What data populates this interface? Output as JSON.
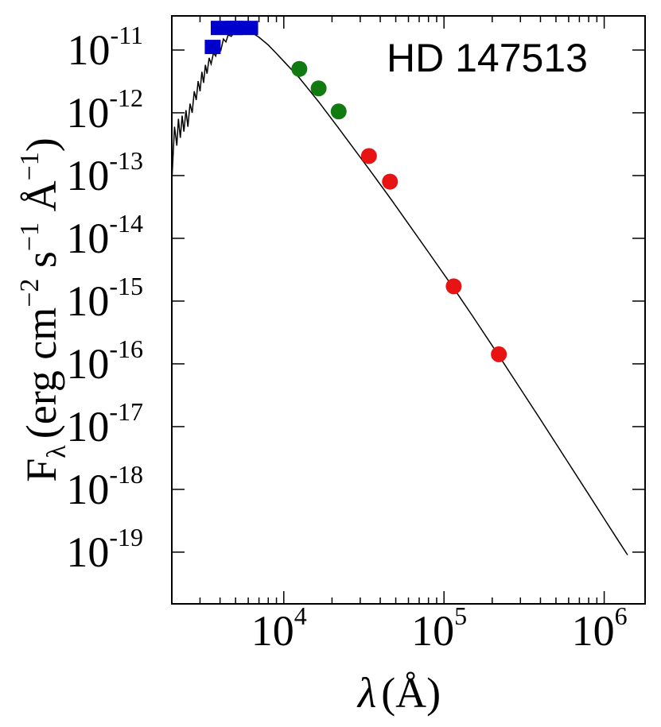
{
  "chart_data": {
    "type": "scatter",
    "annotation": "HD 147513",
    "xlabel_symbol": "λ",
    "xlabel_unit": "(Å)",
    "ylabel_main": "F",
    "ylabel_sub": "λ",
    "ylabel_units": "(erg cm",
    "ylabel_exp1": "−2",
    "ylabel_s": " s",
    "ylabel_exp2": "−1",
    "ylabel_A": " Å",
    "ylabel_exp3": "−1",
    "ylabel_close": ")",
    "xscale": "log",
    "yscale": "log",
    "xlim": [
      2000,
      1800000
    ],
    "ylim": [
      1.5e-20,
      3.5e-11
    ],
    "x_ticks": [
      {
        "value": 10000,
        "base": "10",
        "exp": "4"
      },
      {
        "value": 100000,
        "base": "10",
        "exp": "5"
      },
      {
        "value": 1000000,
        "base": "10",
        "exp": "6"
      }
    ],
    "y_ticks": [
      {
        "value": 1e-11,
        "base": "10",
        "exp": "-11"
      },
      {
        "value": 1e-12,
        "base": "10",
        "exp": "-12"
      },
      {
        "value": 1e-13,
        "base": "10",
        "exp": "-13"
      },
      {
        "value": 1e-14,
        "base": "10",
        "exp": "-14"
      },
      {
        "value": 1e-15,
        "base": "10",
        "exp": "-15"
      },
      {
        "value": 1e-16,
        "base": "10",
        "exp": "-16"
      },
      {
        "value": 1e-17,
        "base": "10",
        "exp": "-17"
      },
      {
        "value": 1e-18,
        "base": "10",
        "exp": "-18"
      },
      {
        "value": 1e-19,
        "base": "10",
        "exp": "-19"
      }
    ],
    "series": [
      {
        "kind": "model",
        "color": "#000000",
        "points": [
          [
            2000,
            8e-14
          ],
          [
            2080,
            6e-13
          ],
          [
            2150,
            3e-13
          ],
          [
            2200,
            8e-13
          ],
          [
            2260,
            4e-13
          ],
          [
            2320,
            9e-13
          ],
          [
            2380,
            5e-13
          ],
          [
            2450,
            1.1e-12
          ],
          [
            2520,
            6e-13
          ],
          [
            2600,
            1.4e-12
          ],
          [
            2680,
            1e-12
          ],
          [
            2760,
            2.2e-12
          ],
          [
            2840,
            1.6e-12
          ],
          [
            2920,
            3.2e-12
          ],
          [
            3000,
            2.2e-12
          ],
          [
            3080,
            4.5e-12
          ],
          [
            3160,
            3e-12
          ],
          [
            3240,
            5.8e-12
          ],
          [
            3320,
            4.2e-12
          ],
          [
            3420,
            7.5e-12
          ],
          [
            3520,
            6e-12
          ],
          [
            3640,
            9e-12
          ],
          [
            3760,
            8e-12
          ],
          [
            3900,
            1.2e-11
          ],
          [
            4050,
            1e-11
          ],
          [
            4200,
            1.5e-11
          ],
          [
            4350,
            1.35e-11
          ],
          [
            4500,
            1.75e-11
          ],
          [
            4700,
            1.65e-11
          ],
          [
            4900,
            1.9e-11
          ],
          [
            5100,
            1.85e-11
          ],
          [
            5400,
            2e-11
          ],
          [
            5800,
            1.95e-11
          ],
          [
            6300,
            1.9e-11
          ],
          [
            7000,
            1.6e-11
          ],
          [
            8000,
            1.2e-11
          ],
          [
            9000,
            8.8e-12
          ],
          [
            10000,
            6.6e-12
          ],
          [
            12500,
            3.6e-12
          ],
          [
            16500,
            1.5e-12
          ],
          [
            22000,
            5.7e-13
          ],
          [
            35000,
            1.15e-13
          ],
          [
            47000,
            4.1e-14
          ],
          [
            60000,
            1.7e-14
          ],
          [
            80000,
            6e-15
          ],
          [
            115000,
            1.6e-15
          ],
          [
            150000,
            5.9e-16
          ],
          [
            220000,
            1.35e-16
          ],
          [
            300000,
            4e-17
          ],
          [
            400000,
            1.3e-17
          ],
          [
            600000,
            2.6e-18
          ],
          [
            800000,
            8.3e-19
          ],
          [
            1000000,
            3.4e-19
          ],
          [
            1200000,
            1.65e-19
          ],
          [
            1400000,
            9e-20
          ]
        ]
      },
      {
        "kind": "squares",
        "color": "#0000cc",
        "points": [
          [
            3600,
            1.12e-11
          ],
          [
            4400,
            2.25e-11
          ],
          [
            5500,
            2.25e-11
          ]
        ]
      },
      {
        "kind": "circles",
        "color": "#117a11",
        "points": [
          [
            12500,
            5e-12
          ],
          [
            16500,
            2.45e-12
          ],
          [
            22000,
            1.05e-12
          ]
        ]
      },
      {
        "kind": "circles",
        "color": "#e81414",
        "points": [
          [
            34000,
            2.05e-13
          ],
          [
            46000,
            8e-14
          ],
          [
            115000,
            1.72e-15
          ],
          [
            220000,
            1.42e-16
          ]
        ]
      }
    ]
  }
}
